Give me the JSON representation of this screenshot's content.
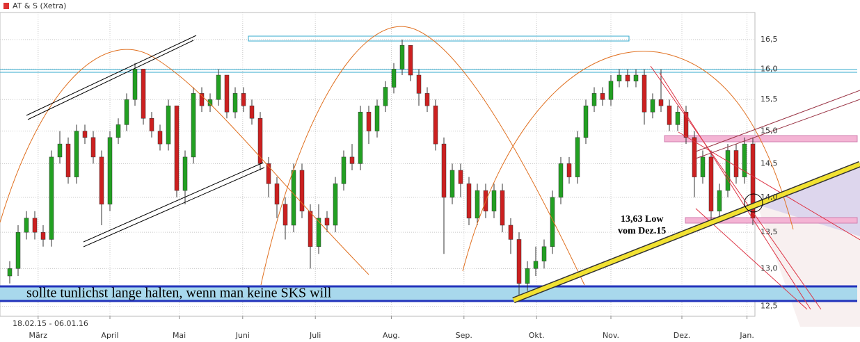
{
  "chart_data": {
    "type": "candlestick",
    "name": "AT & S (Xetra)",
    "color": "#dd3333",
    "range_label": "18.02.15 - 06.01.16",
    "annotations": [
      "sollte tunlichst lange halten, wenn man keine SKS will",
      "13,63 Low",
      "vom Dez.15"
    ],
    "up_color": "#22a022",
    "down_color": "#cc2020",
    "log": true,
    "grid": true,
    "ylim": [
      12.37,
      16.97
    ],
    "yticks": [
      {
        "value": 12.5,
        "label": "12,5"
      },
      {
        "value": 13,
        "label": "13,0"
      },
      {
        "value": 13.5,
        "label": "13,5"
      },
      {
        "value": 14,
        "label": "14,0"
      },
      {
        "value": 14.5,
        "label": "14,5"
      },
      {
        "value": 15,
        "label": "15,0"
      },
      {
        "value": 15.5,
        "label": "15,5"
      },
      {
        "value": 16,
        "label": "16,0"
      },
      {
        "value": 16.5,
        "label": "16,5"
      }
    ],
    "xticks": [
      {
        "value": 3.4,
        "label": "März"
      },
      {
        "value": 12,
        "label": "April"
      },
      {
        "value": 20.3,
        "label": "Mai"
      },
      {
        "value": 27.9,
        "label": "Juni"
      },
      {
        "value": 36.6,
        "label": "Juli"
      },
      {
        "value": 45.7,
        "label": "Aug."
      },
      {
        "value": 54.4,
        "label": "Sep."
      },
      {
        "value": 63.1,
        "label": "Okt."
      },
      {
        "value": 72,
        "label": "Nov."
      },
      {
        "value": 80.5,
        "label": "Dez."
      },
      {
        "value": 88.3,
        "label": "Jan."
      }
    ],
    "candles": [
      [
        12.9,
        13.1,
        12.8,
        13.0
      ],
      [
        13.0,
        13.6,
        12.9,
        13.5
      ],
      [
        13.5,
        13.8,
        13.4,
        13.7
      ],
      [
        13.7,
        13.8,
        13.4,
        13.5
      ],
      [
        13.5,
        13.6,
        13.3,
        13.4
      ],
      [
        13.4,
        14.7,
        13.3,
        14.6
      ],
      [
        14.6,
        15.0,
        14.5,
        14.8
      ],
      [
        14.8,
        14.9,
        14.2,
        14.3
      ],
      [
        14.3,
        15.1,
        14.2,
        15.0
      ],
      [
        15.0,
        15.1,
        14.8,
        14.9
      ],
      [
        14.9,
        15.0,
        14.5,
        14.6
      ],
      [
        14.6,
        14.7,
        13.6,
        13.9
      ],
      [
        13.9,
        15.0,
        13.8,
        14.9
      ],
      [
        14.9,
        15.2,
        14.8,
        15.1
      ],
      [
        15.1,
        15.6,
        15.0,
        15.5
      ],
      [
        15.5,
        16.1,
        15.4,
        16.0
      ],
      [
        16.0,
        16.0,
        15.1,
        15.2
      ],
      [
        15.2,
        15.3,
        14.9,
        15.0
      ],
      [
        15.0,
        15.1,
        14.7,
        14.8
      ],
      [
        14.8,
        15.5,
        14.7,
        15.4
      ],
      [
        15.4,
        15.4,
        14.0,
        14.1
      ],
      [
        14.1,
        14.7,
        13.9,
        14.6
      ],
      [
        14.6,
        15.7,
        14.5,
        15.6
      ],
      [
        15.6,
        15.7,
        15.3,
        15.4
      ],
      [
        15.4,
        15.6,
        15.3,
        15.5
      ],
      [
        15.5,
        16.0,
        15.4,
        15.9
      ],
      [
        15.9,
        15.9,
        15.2,
        15.3
      ],
      [
        15.3,
        15.7,
        15.2,
        15.6
      ],
      [
        15.6,
        15.7,
        15.3,
        15.4
      ],
      [
        15.4,
        15.5,
        15.1,
        15.2
      ],
      [
        15.2,
        15.3,
        14.4,
        14.5
      ],
      [
        14.5,
        14.6,
        14.0,
        14.2
      ],
      [
        14.2,
        14.3,
        13.7,
        13.9
      ],
      [
        13.9,
        14.0,
        13.4,
        13.6
      ],
      [
        13.6,
        14.5,
        13.5,
        14.4
      ],
      [
        14.4,
        14.5,
        13.7,
        13.8
      ],
      [
        13.8,
        13.9,
        13.0,
        13.3
      ],
      [
        13.3,
        13.9,
        13.2,
        13.7
      ],
      [
        13.7,
        13.8,
        13.5,
        13.6
      ],
      [
        13.6,
        14.3,
        13.5,
        14.2
      ],
      [
        14.2,
        14.7,
        14.1,
        14.6
      ],
      [
        14.6,
        14.8,
        14.4,
        14.5
      ],
      [
        14.5,
        15.4,
        14.4,
        15.3
      ],
      [
        15.3,
        15.4,
        14.8,
        15.0
      ],
      [
        15.0,
        15.5,
        14.9,
        15.4
      ],
      [
        15.4,
        15.8,
        15.3,
        15.7
      ],
      [
        15.7,
        16.1,
        15.6,
        16.0
      ],
      [
        16.0,
        16.5,
        15.9,
        16.4
      ],
      [
        16.4,
        16.4,
        15.8,
        15.9
      ],
      [
        15.9,
        16.0,
        15.4,
        15.6
      ],
      [
        15.6,
        15.7,
        15.3,
        15.4
      ],
      [
        15.4,
        15.5,
        14.7,
        14.8
      ],
      [
        14.8,
        14.9,
        13.2,
        14.0
      ],
      [
        14.0,
        14.5,
        13.9,
        14.4
      ],
      [
        14.4,
        14.5,
        14.0,
        14.2
      ],
      [
        14.2,
        14.3,
        13.6,
        13.7
      ],
      [
        13.7,
        14.2,
        13.6,
        14.1
      ],
      [
        14.1,
        14.2,
        13.7,
        13.8
      ],
      [
        13.8,
        14.2,
        13.7,
        14.1
      ],
      [
        14.1,
        14.2,
        13.5,
        13.6
      ],
      [
        13.6,
        13.7,
        13.2,
        13.4
      ],
      [
        13.4,
        13.5,
        12.6,
        12.8
      ],
      [
        12.8,
        13.1,
        12.7,
        13.0
      ],
      [
        13.0,
        13.3,
        12.9,
        13.1
      ],
      [
        13.1,
        13.4,
        13.0,
        13.3
      ],
      [
        13.3,
        14.1,
        13.2,
        14.0
      ],
      [
        14.0,
        14.6,
        13.9,
        14.5
      ],
      [
        14.5,
        14.6,
        14.2,
        14.3
      ],
      [
        14.3,
        15.0,
        14.2,
        14.9
      ],
      [
        14.9,
        15.5,
        14.8,
        15.4
      ],
      [
        15.4,
        15.7,
        15.3,
        15.6
      ],
      [
        15.6,
        15.7,
        15.4,
        15.5
      ],
      [
        15.5,
        15.9,
        15.4,
        15.8
      ],
      [
        15.8,
        16.0,
        15.7,
        15.9
      ],
      [
        15.9,
        16.0,
        15.7,
        15.8
      ],
      [
        15.8,
        16.0,
        15.7,
        15.9
      ],
      [
        15.9,
        16.0,
        15.1,
        15.3
      ],
      [
        15.3,
        15.6,
        15.2,
        15.5
      ],
      [
        15.5,
        16.0,
        15.3,
        15.4
      ],
      [
        15.4,
        15.5,
        15.0,
        15.1
      ],
      [
        15.1,
        15.4,
        15.0,
        15.3
      ],
      [
        15.3,
        15.4,
        14.8,
        14.9
      ],
      [
        14.9,
        15.0,
        14.0,
        14.3
      ],
      [
        14.3,
        14.7,
        14.2,
        14.6
      ],
      [
        14.6,
        14.7,
        13.6,
        13.8
      ],
      [
        13.8,
        14.2,
        13.7,
        14.1
      ],
      [
        14.1,
        14.8,
        14.0,
        14.7
      ],
      [
        14.7,
        14.8,
        14.2,
        14.3
      ],
      [
        14.3,
        14.9,
        14.2,
        14.8
      ],
      [
        14.8,
        14.9,
        13.6,
        13.7
      ]
    ]
  }
}
